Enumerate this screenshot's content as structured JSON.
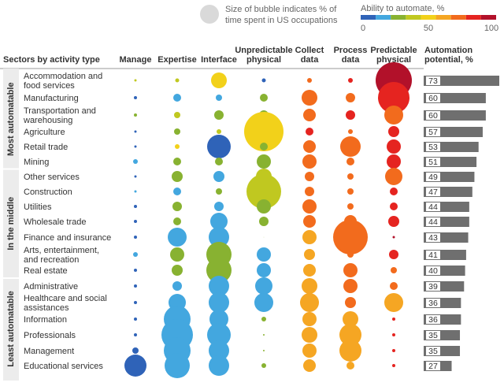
{
  "chart_data": {
    "type": "bubble-matrix",
    "title": "",
    "legend": {
      "size_note_line1": "Size of bubble indicates % of",
      "size_note_line2": "time spent in US occupations",
      "color_title": "Ability to automate, %",
      "color_ticks": [
        "0",
        "50",
        "100"
      ],
      "color_scale": [
        "#2f63b8",
        "#43a7df",
        "#88b231",
        "#c0c820",
        "#f2d11a",
        "#f5a623",
        "#f26b1d",
        "#e52420",
        "#b2112a"
      ]
    },
    "row_header": "Sectors by activity type",
    "columns": [
      {
        "key": "manage",
        "label": [
          "Manage"
        ]
      },
      {
        "key": "expertise",
        "label": [
          "Expertise"
        ]
      },
      {
        "key": "interface",
        "label": [
          "Interface"
        ]
      },
      {
        "key": "unpredictable_physical",
        "label": [
          "Unpredictable",
          "physical"
        ]
      },
      {
        "key": "collect_data",
        "label": [
          "Collect",
          "data"
        ]
      },
      {
        "key": "process_data",
        "label": [
          "Process",
          "data"
        ]
      },
      {
        "key": "predictable_physical",
        "label": [
          "Predictable",
          "physical"
        ]
      }
    ],
    "potential_header": [
      "Automation",
      "potential, %"
    ],
    "groups": [
      {
        "label": "Most automatable",
        "rows": [
          0,
          5
        ]
      },
      {
        "label": "In the middle",
        "rows": [
          6,
          12
        ]
      },
      {
        "label": "Least automatable",
        "rows": [
          13,
          18
        ]
      }
    ],
    "sectors": [
      {
        "name": [
          "Accommodation and",
          "food services"
        ],
        "potential": 73,
        "bubbles": [
          [
            1.5,
            "#c0c820"
          ],
          [
            2.5,
            "#c0c820"
          ],
          [
            10,
            "#f2d11a"
          ],
          [
            2.5,
            "#2f63b8"
          ],
          [
            3,
            "#f26b1d"
          ],
          [
            3,
            "#e52420"
          ],
          [
            23,
            "#b2112a"
          ]
        ]
      },
      {
        "name": [
          "Manufacturing"
        ],
        "potential": 60,
        "bubbles": [
          [
            2,
            "#2f63b8"
          ],
          [
            5,
            "#43a7df"
          ],
          [
            4,
            "#43a7df"
          ],
          [
            5,
            "#88b231"
          ],
          [
            10,
            "#f26b1d"
          ],
          [
            6,
            "#f26b1d"
          ],
          [
            20,
            "#e52420"
          ]
        ]
      },
      {
        "name": [
          "Transportation and",
          "warehousing"
        ],
        "potential": 60,
        "bubbles": [
          [
            2,
            "#88b231"
          ],
          [
            4,
            "#c0c820"
          ],
          [
            6,
            "#88b231"
          ],
          [
            6,
            "#88b231"
          ],
          [
            8,
            "#f26b1d"
          ],
          [
            6,
            "#e52420"
          ],
          [
            12,
            "#f26b1d"
          ]
        ]
      },
      {
        "name": [
          "Agriculture"
        ],
        "potential": 57,
        "bubbles": [
          [
            1.5,
            "#2f63b8"
          ],
          [
            4,
            "#88b231"
          ],
          [
            3,
            "#c0c820"
          ],
          [
            25,
            "#f2d11a"
          ],
          [
            5,
            "#e52420"
          ],
          [
            3,
            "#f26b1d"
          ],
          [
            7,
            "#e52420"
          ]
        ]
      },
      {
        "name": [
          "Retail trade"
        ],
        "potential": 53,
        "bubbles": [
          [
            1.5,
            "#2f63b8"
          ],
          [
            3,
            "#f2d11a"
          ],
          [
            15,
            "#2f63b8"
          ],
          [
            5,
            "#88b231"
          ],
          [
            8,
            "#f26b1d"
          ],
          [
            13,
            "#f26b1d"
          ],
          [
            9,
            "#e52420"
          ]
        ]
      },
      {
        "name": [
          "Mining"
        ],
        "potential": 51,
        "bubbles": [
          [
            3,
            "#43a7df"
          ],
          [
            5,
            "#88b231"
          ],
          [
            5,
            "#88b231"
          ],
          [
            9,
            "#88b231"
          ],
          [
            9,
            "#f26b1d"
          ],
          [
            5,
            "#f26b1d"
          ],
          [
            9,
            "#e52420"
          ]
        ]
      },
      {
        "name": [
          "Other services"
        ],
        "potential": 49,
        "bubbles": [
          [
            1.5,
            "#2f63b8"
          ],
          [
            7,
            "#88b231"
          ],
          [
            7,
            "#43a7df"
          ],
          [
            10,
            "#c0c820"
          ],
          [
            6,
            "#f26b1d"
          ],
          [
            4,
            "#f26b1d"
          ],
          [
            11,
            "#f26b1d"
          ]
        ]
      },
      {
        "name": [
          "Construction"
        ],
        "potential": 47,
        "bubbles": [
          [
            1.5,
            "#43a7df"
          ],
          [
            5,
            "#43a7df"
          ],
          [
            4,
            "#88b231"
          ],
          [
            22,
            "#c0c820"
          ],
          [
            6,
            "#f26b1d"
          ],
          [
            4,
            "#f26b1d"
          ],
          [
            5,
            "#e52420"
          ]
        ]
      },
      {
        "name": [
          "Utilities"
        ],
        "potential": 44,
        "bubbles": [
          [
            2,
            "#2f63b8"
          ],
          [
            6,
            "#88b231"
          ],
          [
            6,
            "#43a7df"
          ],
          [
            9,
            "#88b231"
          ],
          [
            9,
            "#f26b1d"
          ],
          [
            4,
            "#f26b1d"
          ],
          [
            5,
            "#e52420"
          ]
        ]
      },
      {
        "name": [
          "Wholesale trade"
        ],
        "potential": 44,
        "bubbles": [
          [
            2,
            "#2f63b8"
          ],
          [
            5,
            "#88b231"
          ],
          [
            11,
            "#43a7df"
          ],
          [
            6,
            "#88b231"
          ],
          [
            8,
            "#f26b1d"
          ],
          [
            8,
            "#f26b1d"
          ],
          [
            7,
            "#e52420"
          ]
        ]
      },
      {
        "name": [
          "Finance and insurance"
        ],
        "potential": 43,
        "bubbles": [
          [
            2,
            "#2f63b8"
          ],
          [
            12,
            "#43a7df"
          ],
          [
            13,
            "#43a7df"
          ],
          [
            0.3,
            "#88b231"
          ],
          [
            9,
            "#f5a623"
          ],
          [
            22,
            "#f26b1d"
          ],
          [
            1.5,
            "#b2112a"
          ]
        ]
      },
      {
        "name": [
          "Arts, entertainment,",
          "and recreation"
        ],
        "potential": 41,
        "bubbles": [
          [
            3,
            "#43a7df"
          ],
          [
            9,
            "#88b231"
          ],
          [
            16,
            "#88b231"
          ],
          [
            9,
            "#43a7df"
          ],
          [
            7,
            "#f5a623"
          ],
          [
            4,
            "#f26b1d"
          ],
          [
            6,
            "#e52420"
          ]
        ]
      },
      {
        "name": [
          "Real estate"
        ],
        "potential": 40,
        "bubbles": [
          [
            2,
            "#2f63b8"
          ],
          [
            7,
            "#88b231"
          ],
          [
            16,
            "#88b231"
          ],
          [
            9,
            "#43a7df"
          ],
          [
            8,
            "#f5a623"
          ],
          [
            9,
            "#f26b1d"
          ],
          [
            4,
            "#f26b1d"
          ]
        ]
      },
      {
        "name": [
          "Administrative"
        ],
        "potential": 39,
        "bubbles": [
          [
            2,
            "#2f63b8"
          ],
          [
            6,
            "#43a7df"
          ],
          [
            13,
            "#43a7df"
          ],
          [
            11,
            "#43a7df"
          ],
          [
            10,
            "#f5a623"
          ],
          [
            9,
            "#f26b1d"
          ],
          [
            5,
            "#f26b1d"
          ]
        ]
      },
      {
        "name": [
          "Healthcare and social",
          "assistances"
        ],
        "potential": 36,
        "bubbles": [
          [
            2,
            "#2f63b8"
          ],
          [
            11,
            "#43a7df"
          ],
          [
            13,
            "#43a7df"
          ],
          [
            12,
            "#43a7df"
          ],
          [
            12,
            "#f5a623"
          ],
          [
            7,
            "#f26b1d"
          ],
          [
            12,
            "#f5a623"
          ]
        ]
      },
      {
        "name": [
          "Information"
        ],
        "potential": 36,
        "bubbles": [
          [
            2,
            "#2f63b8"
          ],
          [
            17,
            "#43a7df"
          ],
          [
            12,
            "#43a7df"
          ],
          [
            3,
            "#88b231"
          ],
          [
            9,
            "#f5a623"
          ],
          [
            10,
            "#f5a623"
          ],
          [
            2,
            "#e52420"
          ]
        ]
      },
      {
        "name": [
          "Professionals"
        ],
        "potential": 35,
        "bubbles": [
          [
            2,
            "#2f63b8"
          ],
          [
            20,
            "#43a7df"
          ],
          [
            15,
            "#43a7df"
          ],
          [
            1,
            "#88b231"
          ],
          [
            10,
            "#f5a623"
          ],
          [
            14,
            "#f5a623"
          ],
          [
            2,
            "#e52420"
          ]
        ]
      },
      {
        "name": [
          "Management"
        ],
        "potential": 35,
        "bubbles": [
          [
            4,
            "#2f63b8"
          ],
          [
            17,
            "#43a7df"
          ],
          [
            13,
            "#43a7df"
          ],
          [
            1,
            "#88b231"
          ],
          [
            9,
            "#f5a623"
          ],
          [
            14,
            "#f5a623"
          ],
          [
            2,
            "#e52420"
          ]
        ]
      },
      {
        "name": [
          "Educational services"
        ],
        "potential": 27,
        "bubbles": [
          [
            14,
            "#2f63b8"
          ],
          [
            16,
            "#43a7df"
          ],
          [
            13,
            "#43a7df"
          ],
          [
            3,
            "#88b231"
          ],
          [
            8,
            "#f5a623"
          ],
          [
            5,
            "#f5a623"
          ],
          [
            2,
            "#e52420"
          ]
        ]
      }
    ]
  }
}
